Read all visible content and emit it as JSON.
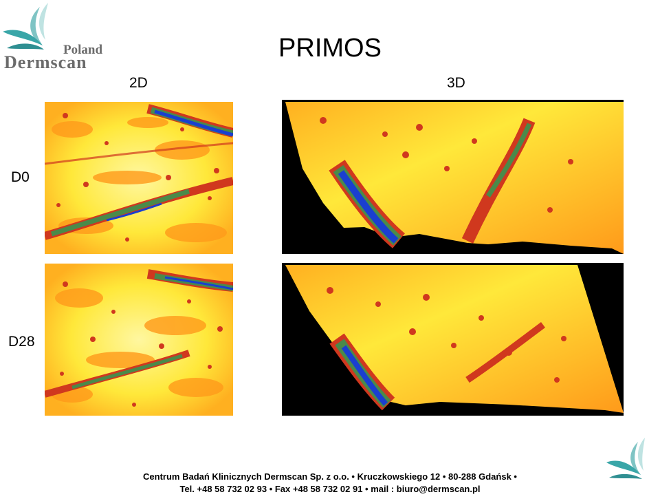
{
  "title": "PRIMOS",
  "logo": {
    "line1": "Poland",
    "line2": "Dermscan",
    "accent": "#3aa6a8",
    "text_color": "#6b6b6b"
  },
  "columns": {
    "c2d": "2D",
    "c3d": "3D"
  },
  "rows": {
    "d0": "D0",
    "d28": "D28"
  },
  "colors": {
    "yellow": "#ffef3a",
    "orange": "#ff9a1a",
    "red": "#d0381e",
    "green": "#4a8a4a",
    "blue": "#1a3fd0",
    "black": "#000000"
  },
  "footer": {
    "line1": "Centrum Badań Klinicznych Dermscan  Sp. z o.o. • Kruczkowskiego 12 • 80-288 Gdańsk •",
    "line2": "Tel. +48 58 732 02 93 • Fax +48 58 732 02 91 • mail : biuro@dermscan.pl"
  }
}
